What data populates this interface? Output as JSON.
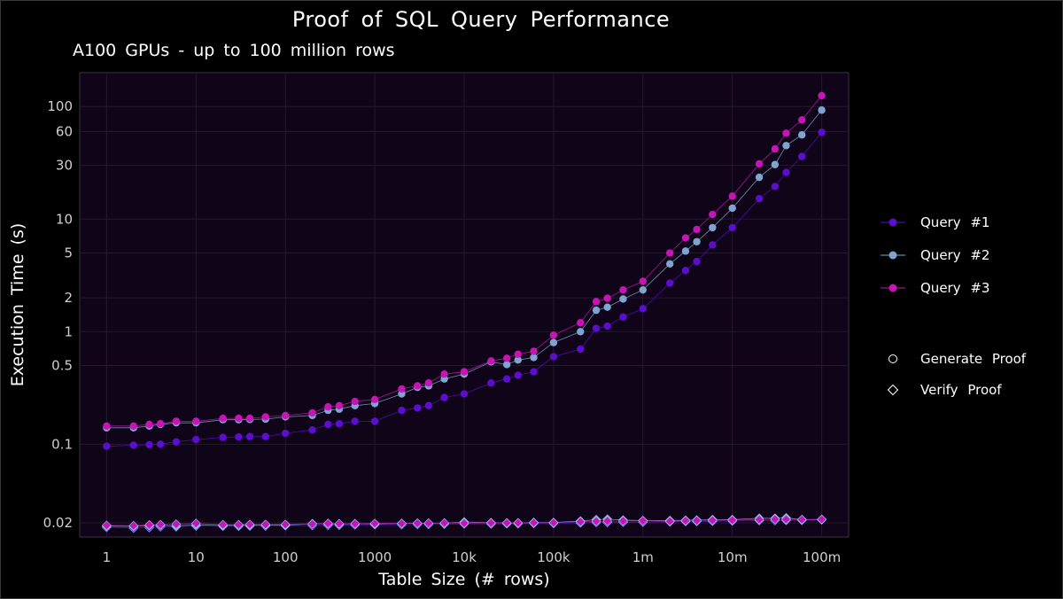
{
  "colors": {
    "background": "#000000",
    "panel": "#0f0418",
    "grid": "#25182f",
    "query1": "#5b0ecc",
    "query2": "#7fa4d0",
    "query3": "#c516b4"
  },
  "chart_data": {
    "type": "scatter",
    "title": "Proof of SQL Query Performance",
    "subtitle": "A100 GPUs - up to 100 million rows",
    "xlabel": "Table Size (# rows)",
    "ylabel": "Execution Time (s)",
    "xscale": "log",
    "yscale": "log",
    "xlim": [
      0.5,
      200000000
    ],
    "ylim": [
      0.015,
      200
    ],
    "grid": true,
    "legend_position": "right",
    "x_ticks": [
      {
        "value": 1,
        "label": "1"
      },
      {
        "value": 10,
        "label": "10"
      },
      {
        "value": 100,
        "label": "100"
      },
      {
        "value": 1000,
        "label": "1000"
      },
      {
        "value": 10000,
        "label": "10k"
      },
      {
        "value": 100000,
        "label": "100k"
      },
      {
        "value": 1000000,
        "label": "1m"
      },
      {
        "value": 10000000,
        "label": "10m"
      },
      {
        "value": 100000000,
        "label": "100m"
      }
    ],
    "y_ticks": [
      {
        "value": 0.02,
        "label": "0.02"
      },
      {
        "value": 0.1,
        "label": "0.1"
      },
      {
        "value": 0.5,
        "label": "0.5"
      },
      {
        "value": 1,
        "label": "1"
      },
      {
        "value": 2,
        "label": "2"
      },
      {
        "value": 5,
        "label": "5"
      },
      {
        "value": 10,
        "label": "10"
      },
      {
        "value": 30,
        "label": "30"
      },
      {
        "value": 60,
        "label": "60"
      },
      {
        "value": 100,
        "label": "100"
      }
    ],
    "x": [
      1,
      2,
      3,
      4,
      6,
      10,
      20,
      30,
      40,
      60,
      100,
      200,
      300,
      400,
      600,
      1000,
      2000,
      3000,
      4000,
      6000,
      10000,
      20000,
      30000,
      40000,
      60000,
      100000,
      200000,
      300000,
      400000,
      600000,
      1000000,
      2000000,
      3000000,
      4000000,
      6000000,
      10000000,
      20000000,
      30000000,
      40000000,
      60000000,
      100000000
    ],
    "series": [
      {
        "name": "Query #1",
        "color_key": "query1",
        "generate_proof": [
          0.096,
          0.098,
          0.099,
          0.1,
          0.105,
          0.11,
          0.115,
          0.116,
          0.117,
          0.117,
          0.125,
          0.134,
          0.15,
          0.152,
          0.16,
          0.16,
          0.2,
          0.21,
          0.22,
          0.26,
          0.28,
          0.35,
          0.38,
          0.41,
          0.44,
          0.6,
          0.7,
          1.07,
          1.12,
          1.35,
          1.6,
          2.7,
          3.5,
          4.2,
          5.9,
          8.4,
          15.2,
          19.5,
          26.0,
          36.0,
          59.0
        ],
        "verify_proof": [
          0.0183,
          0.018,
          0.0182,
          0.0185,
          0.0185,
          0.0188,
          0.0187,
          0.0187,
          0.0188,
          0.0188,
          0.0189,
          0.019,
          0.0191,
          0.0191,
          0.0192,
          0.0193,
          0.0193,
          0.0194,
          0.0194,
          0.0195,
          0.0196,
          0.0196,
          0.0197,
          0.0197,
          0.0198,
          0.0198,
          0.02,
          0.0202,
          0.0202,
          0.0203,
          0.0203,
          0.0205,
          0.0206,
          0.0206,
          0.0207,
          0.0208,
          0.021,
          0.021,
          0.0211,
          0.0211,
          0.0213
        ]
      },
      {
        "name": "Query #2",
        "color_key": "query2",
        "generate_proof": [
          0.14,
          0.14,
          0.145,
          0.15,
          0.155,
          0.155,
          0.165,
          0.165,
          0.166,
          0.167,
          0.175,
          0.18,
          0.2,
          0.205,
          0.22,
          0.23,
          0.28,
          0.32,
          0.33,
          0.38,
          0.42,
          0.54,
          0.51,
          0.56,
          0.59,
          0.8,
          1.0,
          1.55,
          1.65,
          1.95,
          2.35,
          4.0,
          5.2,
          6.3,
          8.4,
          12.5,
          23.5,
          30.5,
          45.0,
          56.0,
          93.0
        ],
        "verify_proof": [
          0.0187,
          0.0186,
          0.0189,
          0.0191,
          0.0188,
          0.0192,
          0.019,
          0.0191,
          0.0191,
          0.0192,
          0.0191,
          0.0197,
          0.0196,
          0.0195,
          0.0197,
          0.0196,
          0.0198,
          0.0199,
          0.0199,
          0.0199,
          0.0204,
          0.0201,
          0.02,
          0.02,
          0.0202,
          0.0202,
          0.0208,
          0.0214,
          0.0216,
          0.0212,
          0.021,
          0.021,
          0.0211,
          0.0212,
          0.0214,
          0.0214,
          0.022,
          0.022,
          0.0222,
          0.0214,
          0.0215
        ]
      },
      {
        "name": "Query #3",
        "color_key": "query3",
        "generate_proof": [
          0.145,
          0.145,
          0.15,
          0.152,
          0.16,
          0.16,
          0.17,
          0.17,
          0.17,
          0.175,
          0.18,
          0.19,
          0.215,
          0.22,
          0.24,
          0.25,
          0.31,
          0.33,
          0.35,
          0.42,
          0.44,
          0.55,
          0.58,
          0.63,
          0.67,
          0.93,
          1.2,
          1.85,
          1.98,
          2.35,
          2.8,
          5.0,
          6.8,
          8.1,
          11.0,
          16.0,
          31.0,
          42.0,
          58.0,
          76.0,
          125.0
        ],
        "verify_proof": [
          0.019,
          0.0189,
          0.0192,
          0.0193,
          0.0195,
          0.0198,
          0.0193,
          0.0193,
          0.0194,
          0.0194,
          0.0194,
          0.0196,
          0.0198,
          0.0197,
          0.0197,
          0.0198,
          0.0198,
          0.0199,
          0.0199,
          0.02,
          0.0199,
          0.02,
          0.02,
          0.02,
          0.0201,
          0.0201,
          0.0205,
          0.0207,
          0.0208,
          0.0208,
          0.0209,
          0.0207,
          0.0209,
          0.021,
          0.0211,
          0.0212,
          0.0214,
          0.0216,
          0.0215,
          0.0214,
          0.0215
        ]
      }
    ],
    "legend": {
      "series": [
        "Query #1",
        "Query #2",
        "Query #3"
      ],
      "shapes": [
        {
          "label": "Generate Proof",
          "shape": "circle"
        },
        {
          "label": "Verify Proof",
          "shape": "diamond"
        }
      ]
    }
  }
}
